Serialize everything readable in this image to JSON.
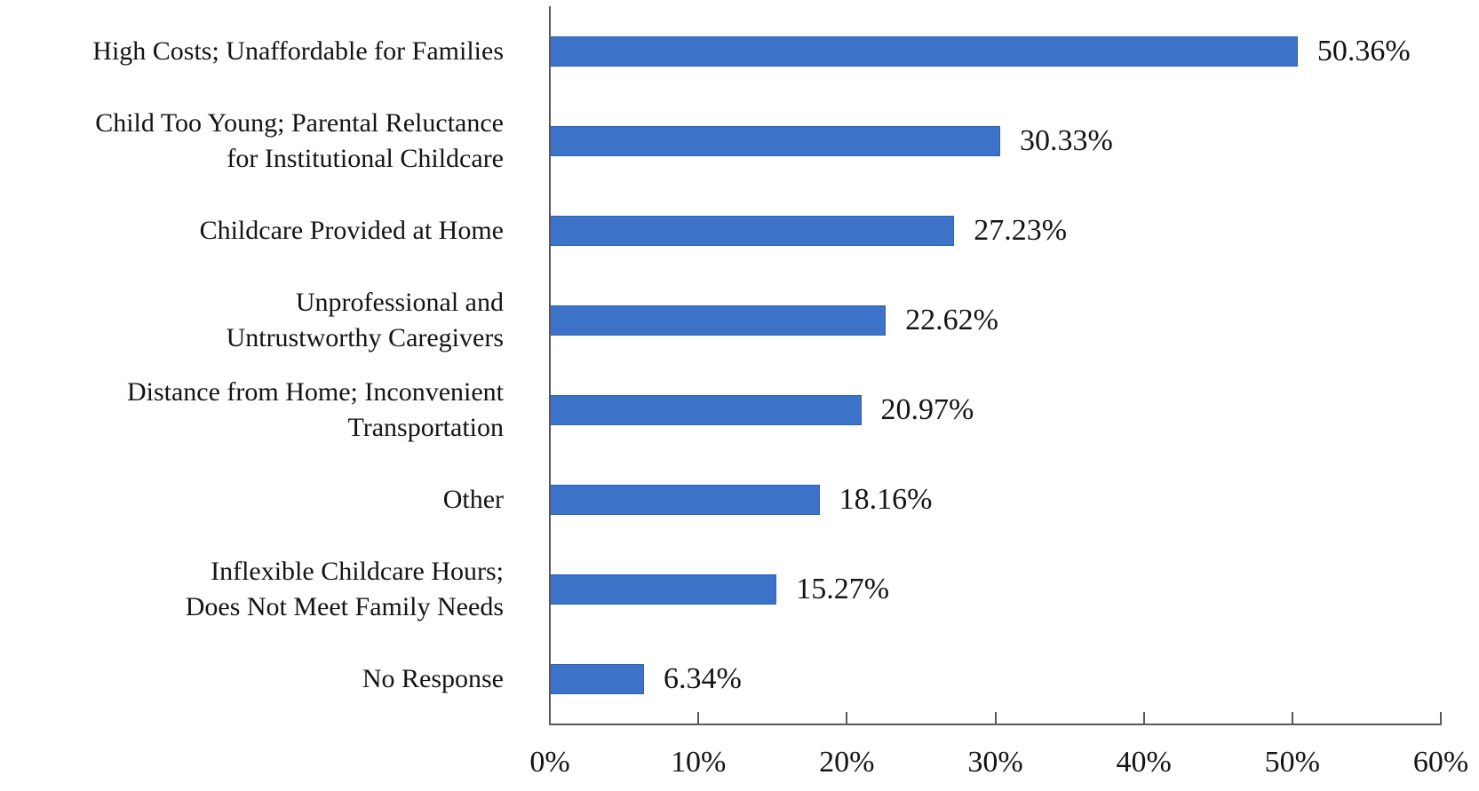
{
  "chart_data": {
    "type": "bar",
    "orientation": "horizontal",
    "xlim": [
      0,
      60
    ],
    "x_tick_values": [
      0,
      10,
      20,
      30,
      40,
      50,
      60
    ],
    "x_tick_labels": [
      "0%",
      "10%",
      "20%",
      "30%",
      "40%",
      "50%",
      "60%"
    ],
    "grid": false,
    "legend_position": "none",
    "bar_color": "#3C73C9",
    "axis_color": "#595959",
    "text_color": "#141414",
    "categories": [
      "High Costs; Unaffordable for Families",
      "Child Too Young; Parental Reluctance for Institutional Childcare",
      "Childcare Provided at Home",
      "Unprofessional and Untrustworthy Caregivers",
      "Distance from Home; Inconvenient Transportation",
      "Other",
      "Inflexible Childcare Hours; Does Not Meet Family Needs",
      "No Response"
    ],
    "values": [
      50.36,
      30.33,
      27.23,
      22.62,
      20.97,
      18.16,
      15.27,
      6.34
    ],
    "items": [
      {
        "label_lines": [
          "High Costs; Unaffordable for Families"
        ],
        "value": 50.36,
        "value_label": "50.36%"
      },
      {
        "label_lines": [
          "Child Too Young; Parental Reluctance",
          "for Institutional Childcare"
        ],
        "value": 30.33,
        "value_label": "30.33%"
      },
      {
        "label_lines": [
          "Childcare Provided at Home"
        ],
        "value": 27.23,
        "value_label": "27.23%"
      },
      {
        "label_lines": [
          "Unprofessional and",
          "Untrustworthy Caregivers"
        ],
        "value": 22.62,
        "value_label": "22.62%"
      },
      {
        "label_lines": [
          "Distance from Home; Inconvenient",
          "Transportation"
        ],
        "value": 20.97,
        "value_label": "20.97%"
      },
      {
        "label_lines": [
          "Other"
        ],
        "value": 18.16,
        "value_label": "18.16%"
      },
      {
        "label_lines": [
          "Inflexible Childcare Hours;",
          "Does Not Meet Family Needs"
        ],
        "value": 15.27,
        "value_label": "15.27%"
      },
      {
        "label_lines": [
          "No Response"
        ],
        "value": 6.34,
        "value_label": "6.34%"
      }
    ]
  }
}
